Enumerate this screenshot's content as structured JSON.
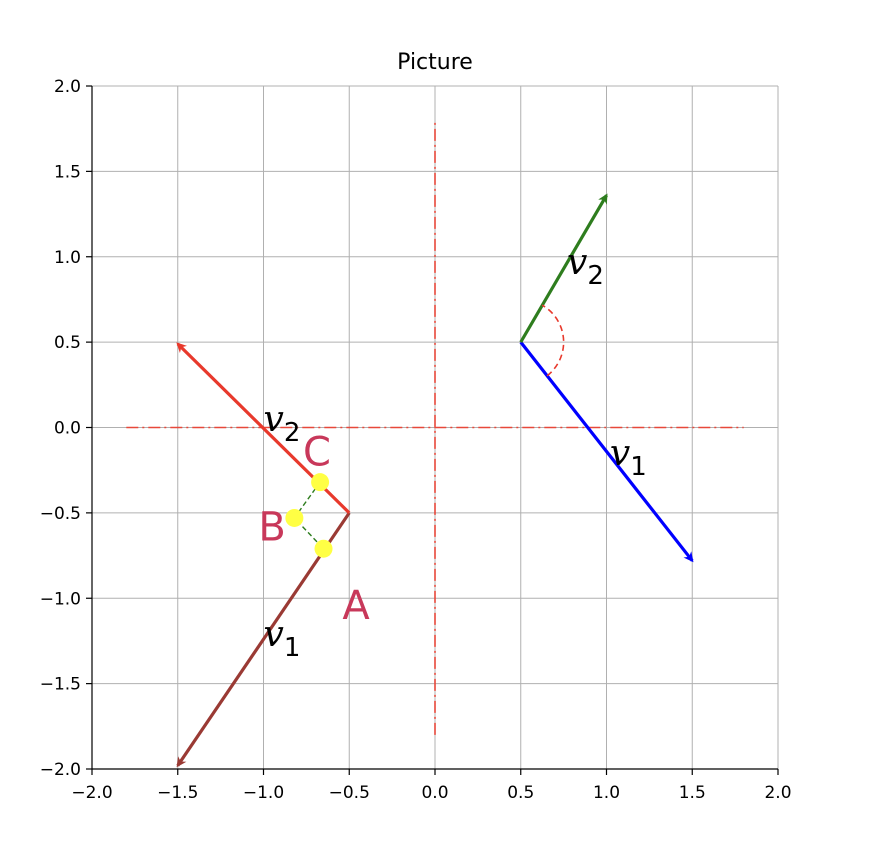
{
  "chart_data": {
    "type": "vector-plot",
    "title": "Picture",
    "xlim": [
      -2.0,
      2.0
    ],
    "ylim": [
      -2.0,
      2.0
    ],
    "xticks": [
      -2.0,
      -1.5,
      -1.0,
      -0.5,
      0.0,
      0.5,
      1.0,
      1.5,
      2.0
    ],
    "yticks": [
      -2.0,
      -1.5,
      -1.0,
      -0.5,
      0.0,
      0.5,
      1.0,
      1.5,
      2.0
    ],
    "xtick_labels": [
      "−2.0",
      "−1.5",
      "−1.0",
      "−0.5",
      "0.0",
      "0.5",
      "1.0",
      "1.5",
      "2.0"
    ],
    "ytick_labels": [
      "−2.0",
      "−1.5",
      "−1.0",
      "−0.5",
      "0.0",
      "0.5",
      "1.0",
      "1.5",
      "2.0"
    ],
    "grid": true,
    "dash_lines": [
      {
        "from": [
          -1.8,
          0.0
        ],
        "to": [
          1.8,
          0.0
        ],
        "color": "#e8483a"
      },
      {
        "from": [
          0.0,
          -1.8
        ],
        "to": [
          0.0,
          1.8
        ],
        "color": "#e8483a"
      }
    ],
    "vectors": [
      {
        "name": "v1-right",
        "from": [
          0.5,
          0.5
        ],
        "to": [
          1.5,
          -0.78
        ],
        "color": "#0000ff"
      },
      {
        "name": "v2-right",
        "from": [
          0.5,
          0.5
        ],
        "to": [
          1.0,
          1.36
        ],
        "color": "#2e7d1e"
      },
      {
        "name": "v1-left",
        "from": [
          -0.5,
          -0.5
        ],
        "to": [
          -1.5,
          -1.98
        ],
        "color": "#9a3a34"
      },
      {
        "name": "v2-left",
        "from": [
          -0.5,
          -0.5
        ],
        "to": [
          -1.5,
          0.49
        ],
        "color": "#e8392c"
      }
    ],
    "angle_arc": {
      "center": [
        0.5,
        0.5
      ],
      "radius": 0.25,
      "from_deg": -52,
      "to_deg": 60,
      "color": "#e8392c"
    },
    "points": [
      {
        "x": -0.67,
        "y": -0.32,
        "color": "#ffff44"
      },
      {
        "x": -0.82,
        "y": -0.53,
        "color": "#ffff44"
      },
      {
        "x": -0.65,
        "y": -0.71,
        "color": "#ffff44"
      }
    ],
    "connector": [
      [
        -0.67,
        -0.32
      ],
      [
        -0.82,
        -0.53
      ],
      [
        -0.65,
        -0.71
      ]
    ],
    "connector_color": "#2e7d1e",
    "vector_labels": [
      {
        "text": "v",
        "sub": "2",
        "x": 0.77,
        "y": 0.97
      },
      {
        "text": "v",
        "sub": "1",
        "x": 1.02,
        "y": -0.15
      },
      {
        "text": "v",
        "sub": "2",
        "x": -1.0,
        "y": 0.05
      },
      {
        "text": "v",
        "sub": "1",
        "x": -1.0,
        "y": -1.21
      }
    ],
    "point_labels": [
      {
        "text": "C",
        "x": -0.77,
        "y": -0.14,
        "color": "#c8385a"
      },
      {
        "text": "B",
        "x": -1.03,
        "y": -0.58,
        "color": "#c8385a"
      },
      {
        "text": "A",
        "x": -0.54,
        "y": -1.04,
        "color": "#c8385a"
      }
    ]
  }
}
